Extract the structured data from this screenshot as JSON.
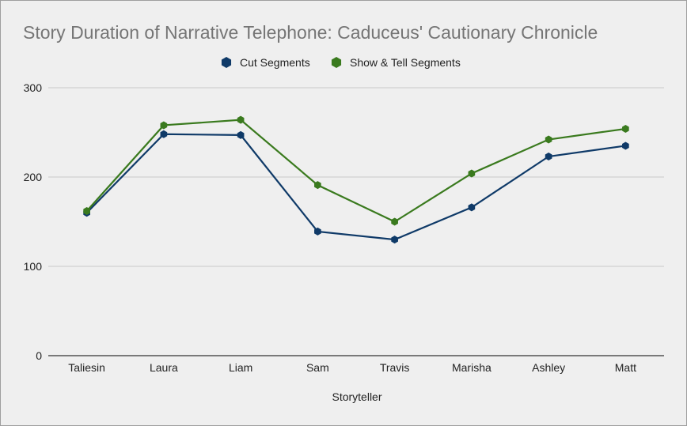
{
  "chart_data": {
    "type": "line",
    "title": "Story Duration of Narrative Telephone: Caduceus' Cautionary Chronicle",
    "xlabel": "Storyteller",
    "ylabel": "",
    "categories": [
      "Taliesin",
      "Laura",
      "Liam",
      "Sam",
      "Travis",
      "Marisha",
      "Ashley",
      "Matt"
    ],
    "ylim": [
      0,
      300
    ],
    "yticks": [
      0,
      100,
      200,
      300
    ],
    "grid": true,
    "legend_position": "top",
    "marker": "hexagon",
    "series": [
      {
        "name": "Cut Segments",
        "color": "#0f3a68",
        "values": [
          160,
          248,
          247,
          139,
          130,
          166,
          223,
          235
        ]
      },
      {
        "name": "Show & Tell Segments",
        "color": "#3a7a1e",
        "values": [
          162,
          258,
          264,
          191,
          150,
          204,
          242,
          254
        ]
      }
    ]
  }
}
